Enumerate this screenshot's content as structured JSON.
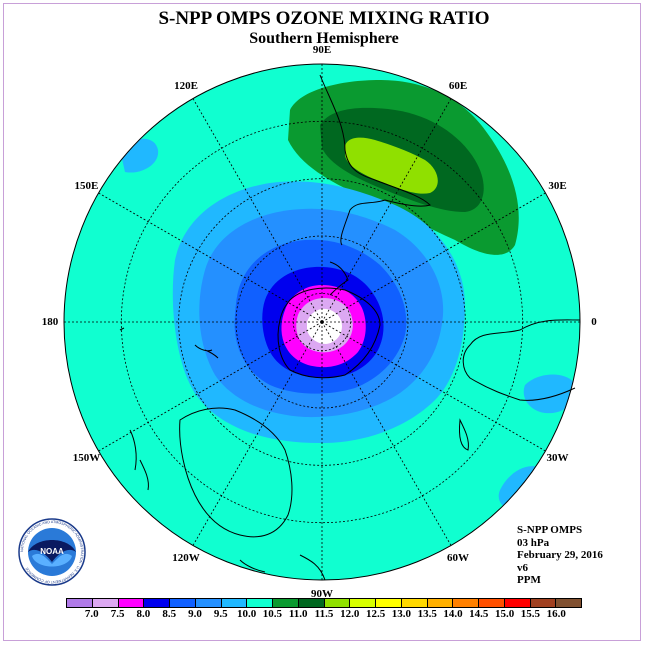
{
  "header": {
    "title": "S-NPP OMPS OZONE MIXING RATIO",
    "subtitle": "Southern Hemisphere"
  },
  "map": {
    "projection": "south-polar-stereographic",
    "longitude_labels": [
      {
        "text": "90W",
        "lon": -90
      },
      {
        "text": "60W",
        "lon": -60
      },
      {
        "text": "30W",
        "lon": -30
      },
      {
        "text": "0",
        "lon": 0
      },
      {
        "text": "30E",
        "lon": 30
      },
      {
        "text": "60E",
        "lon": 60
      },
      {
        "text": "90E",
        "lon": 90
      },
      {
        "text": "120E",
        "lon": 120
      },
      {
        "text": "150E",
        "lon": 150
      },
      {
        "text": "180",
        "lon": 180
      },
      {
        "text": "150W",
        "lon": -150
      },
      {
        "text": "120W",
        "lon": -120
      }
    ],
    "parallels_deg": [
      -80,
      -60,
      -40,
      -20
    ],
    "background_value_range": "10.5-11.0"
  },
  "info": {
    "lines": [
      "S-NPP OMPS",
      "03 hPa",
      "February 29, 2016",
      "v6",
      "PPM"
    ]
  },
  "legend": {
    "colors": [
      "#b07ae8",
      "#dca8f2",
      "#ff00ff",
      "#0000ee",
      "#1060ff",
      "#2490ff",
      "#20b8ff",
      "#10ffd0",
      "#0a9a30",
      "#006820",
      "#90e000",
      "#d8ff00",
      "#ffff00",
      "#ffd800",
      "#ffb000",
      "#ff8000",
      "#ff5000",
      "#ff0000",
      "#a04020",
      "#805030"
    ],
    "ticks": [
      "7.0",
      "7.5",
      "8.0",
      "8.5",
      "9.0",
      "9.5",
      "10.0",
      "10.5",
      "11.0",
      "11.5",
      "12.0",
      "12.5",
      "13.0",
      "13.5",
      "14.0",
      "14.5",
      "15.0",
      "15.5",
      "16.0"
    ]
  },
  "logo": {
    "text": "NOAA",
    "ring_text": "NATIONAL OCEANIC AND ATMOSPHERIC ADMINISTRATION · U.S. DEPARTMENT OF COMMERCE"
  }
}
